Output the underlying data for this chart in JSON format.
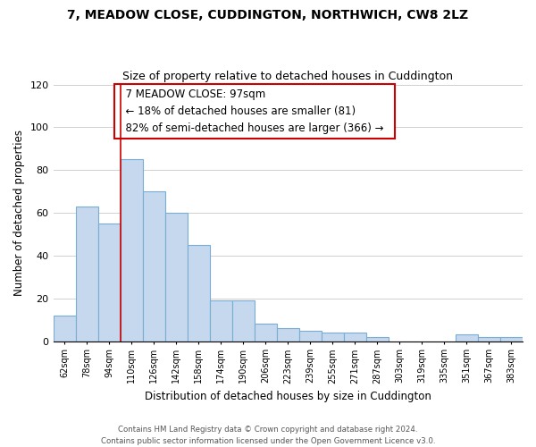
{
  "title1": "7, MEADOW CLOSE, CUDDINGTON, NORTHWICH, CW8 2LZ",
  "title2": "Size of property relative to detached houses in Cuddington",
  "xlabel": "Distribution of detached houses by size in Cuddington",
  "ylabel": "Number of detached properties",
  "bar_labels": [
    "62sqm",
    "78sqm",
    "94sqm",
    "110sqm",
    "126sqm",
    "142sqm",
    "158sqm",
    "174sqm",
    "190sqm",
    "206sqm",
    "223sqm",
    "239sqm",
    "255sqm",
    "271sqm",
    "287sqm",
    "303sqm",
    "319sqm",
    "335sqm",
    "351sqm",
    "367sqm",
    "383sqm"
  ],
  "bar_values": [
    12,
    63,
    55,
    85,
    70,
    60,
    45,
    19,
    19,
    8,
    6,
    5,
    4,
    4,
    2,
    0,
    0,
    0,
    3,
    2,
    2
  ],
  "bar_color": "#c5d8ed",
  "bar_edge_color": "#7aadd4",
  "vline_color": "#cc0000",
  "annotation_title": "7 MEADOW CLOSE: 97sqm",
  "annotation_line1": "← 18% of detached houses are smaller (81)",
  "annotation_line2": "82% of semi-detached houses are larger (366) →",
  "annotation_box_color": "#ffffff",
  "annotation_border_color": "#cc0000",
  "ylim": [
    0,
    120
  ],
  "yticks": [
    0,
    20,
    40,
    60,
    80,
    100,
    120
  ],
  "footer1": "Contains HM Land Registry data © Crown copyright and database right 2024.",
  "footer2": "Contains public sector information licensed under the Open Government Licence v3.0.",
  "background_color": "#ffffff",
  "grid_color": "#d0d0d0"
}
